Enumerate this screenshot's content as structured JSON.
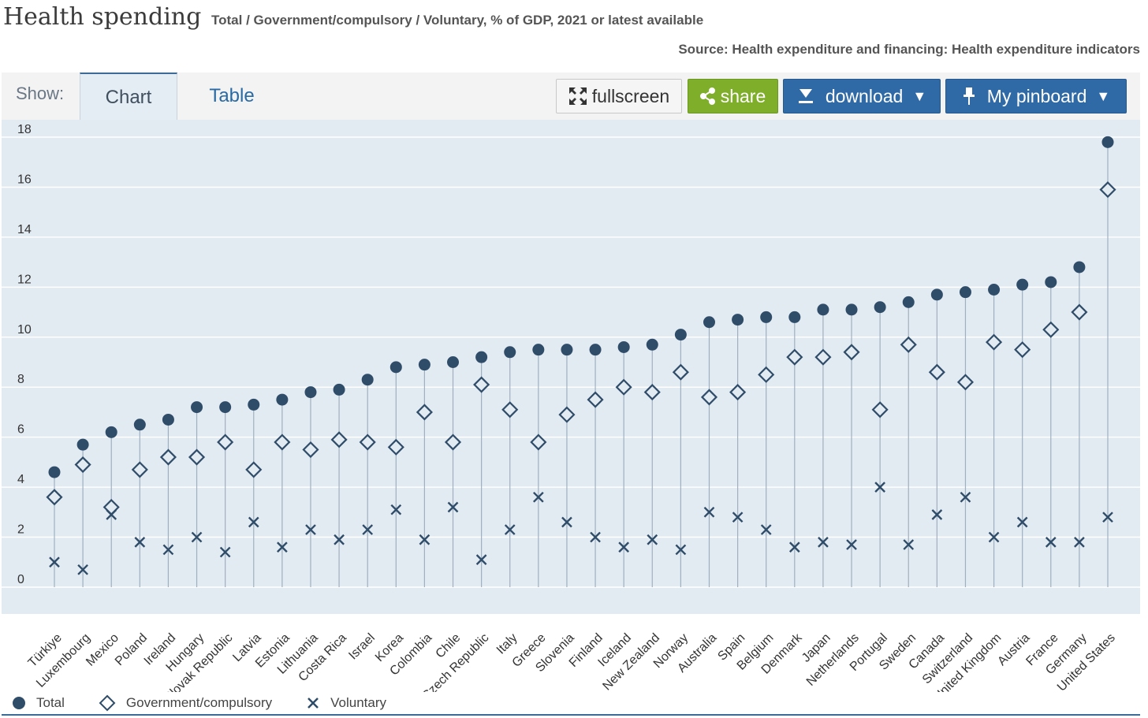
{
  "header": {
    "title": "Health spending",
    "subtitle": "Total / Government/compulsory / Voluntary, % of GDP, 2021 or latest available",
    "source": "Source: Health expenditure and financing: Health expenditure indicators"
  },
  "toolbar": {
    "show_label": "Show:",
    "tabs": [
      {
        "label": "Chart",
        "active": true
      },
      {
        "label": "Table",
        "active": false
      }
    ],
    "fullscreen_label": "fullscreen",
    "share_label": "share",
    "download_label": "download",
    "pinboard_label": "My pinboard",
    "chevron": "▼"
  },
  "colors": {
    "plot_bg": "#e2eaf2",
    "marker": "#2f4c68",
    "stem": "#9fb0c1",
    "share_green": "#7fae2a",
    "button_blue": "#2f6aa6"
  },
  "chart_data": {
    "type": "scatter",
    "ylim": [
      0,
      18
    ],
    "yticks": [
      0,
      2,
      4,
      6,
      8,
      10,
      12,
      14,
      16,
      18
    ],
    "grid": true,
    "legend_position": "bottom-left",
    "categories": [
      "Türkiye",
      "Luxembourg",
      "Mexico",
      "Poland",
      "Ireland",
      "Hungary",
      "Slovak Republic",
      "Latvia",
      "Estonia",
      "Lithuania",
      "Costa Rica",
      "Israel",
      "Korea",
      "Colombia",
      "Chile",
      "Czech Republic",
      "Italy",
      "Greece",
      "Slovenia",
      "Finland",
      "Iceland",
      "New Zealand",
      "Norway",
      "Australia",
      "Spain",
      "Belgium",
      "Denmark",
      "Japan",
      "Netherlands",
      "Portugal",
      "Sweden",
      "Canada",
      "Switzerland",
      "United Kingdom",
      "Austria",
      "France",
      "Germany",
      "United States"
    ],
    "series": [
      {
        "name": "Total",
        "marker": "circle",
        "values": [
          4.6,
          5.7,
          6.2,
          6.5,
          6.7,
          7.2,
          7.2,
          7.3,
          7.5,
          7.8,
          7.9,
          8.3,
          8.8,
          8.9,
          9.0,
          9.2,
          9.4,
          9.5,
          9.5,
          9.5,
          9.6,
          9.7,
          10.1,
          10.6,
          10.7,
          10.8,
          10.8,
          11.1,
          11.1,
          11.2,
          11.4,
          11.7,
          11.8,
          11.9,
          12.1,
          12.2,
          12.8,
          17.8
        ]
      },
      {
        "name": "Government/compulsory",
        "marker": "diamond",
        "values": [
          3.6,
          4.9,
          3.2,
          4.7,
          5.2,
          5.2,
          5.8,
          4.7,
          5.8,
          5.5,
          5.9,
          5.8,
          5.6,
          7.0,
          5.8,
          8.1,
          7.1,
          5.8,
          6.9,
          7.5,
          8.0,
          7.8,
          8.6,
          7.6,
          7.8,
          8.5,
          9.2,
          9.2,
          9.4,
          7.1,
          9.7,
          8.6,
          8.2,
          9.8,
          9.5,
          10.3,
          11.0,
          15.9
        ]
      },
      {
        "name": "Voluntary",
        "marker": "x",
        "values": [
          1.0,
          0.7,
          2.9,
          1.8,
          1.5,
          2.0,
          1.4,
          2.6,
          1.6,
          2.3,
          1.9,
          2.3,
          3.1,
          1.9,
          3.2,
          1.1,
          2.3,
          3.6,
          2.6,
          2.0,
          1.6,
          1.9,
          1.5,
          3.0,
          2.8,
          2.3,
          1.6,
          1.8,
          1.7,
          4.0,
          1.7,
          2.9,
          3.6,
          2.0,
          2.6,
          1.8,
          1.8,
          2.8
        ]
      }
    ]
  }
}
